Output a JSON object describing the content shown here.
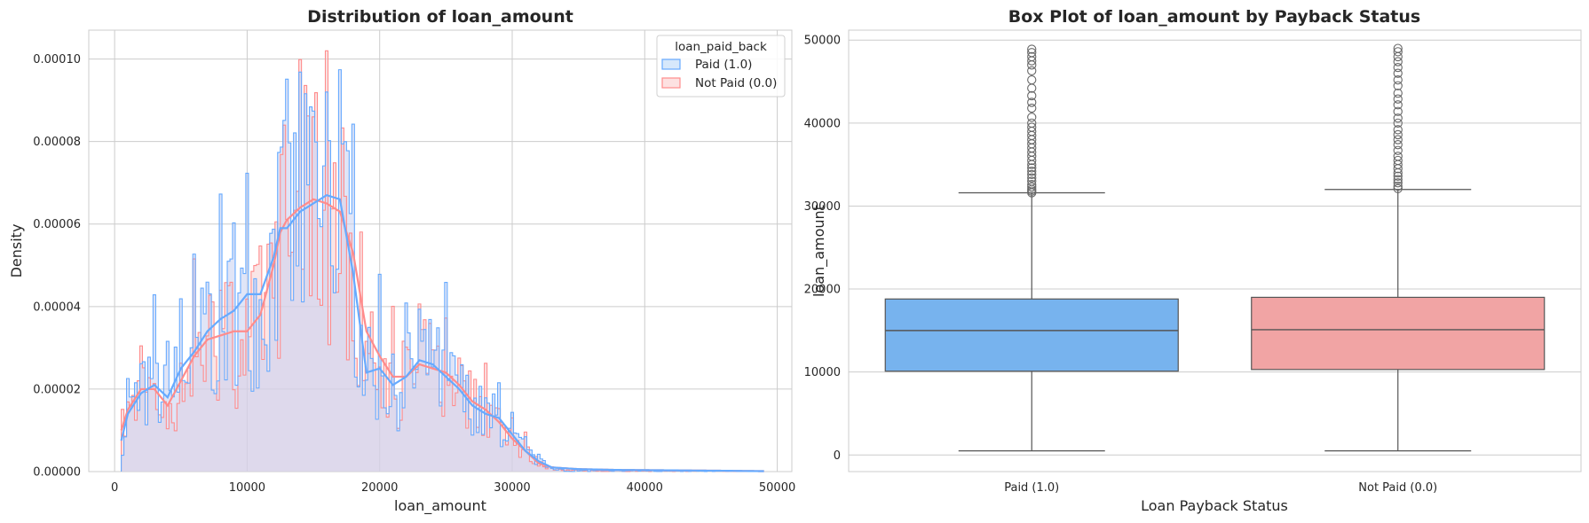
{
  "chart_data": [
    {
      "type": "histogram",
      "title": "Distribution of loan_amount",
      "xlabel": "loan_amount",
      "ylabel": "Density",
      "xlim": [
        -1950,
        51100
      ],
      "ylim": [
        0,
        0.000107
      ],
      "xticks": [
        0,
        10000,
        20000,
        30000,
        40000,
        50000
      ],
      "yticks": [
        0,
        2e-05,
        4e-05,
        6e-05,
        8e-05,
        0.0001
      ],
      "xtick_labels": [
        "0",
        "10000",
        "20000",
        "30000",
        "40000",
        "50000"
      ],
      "ytick_labels": [
        "0.00000",
        "0.00002",
        "0.00004",
        "0.00006",
        "0.00008",
        "0.00010"
      ],
      "legend": {
        "title": "loan_paid_back",
        "placement": "top-right",
        "entries": [
          {
            "label": "Paid (1.0)",
            "color": "#66aaff"
          },
          {
            "label": "Not Paid (0.0)",
            "color": "#ff8c8c"
          }
        ]
      },
      "series": [
        {
          "name": "Paid (1.0)",
          "color": "#66aaff",
          "kde_x": [
            500,
            1000,
            2000,
            3000,
            4000,
            5000,
            6000,
            7000,
            8000,
            9000,
            10000,
            11000,
            12000,
            12500,
            13000,
            14000,
            15000,
            16000,
            17000,
            18000,
            19000,
            20000,
            21000,
            22000,
            23000,
            24000,
            25000,
            26000,
            27000,
            28000,
            29000,
            30000,
            31000,
            32000,
            33000,
            35000,
            38000,
            42000,
            46000,
            49000
          ],
          "kde_density": [
            7.5e-06,
            1.4e-05,
            1.9e-05,
            2.1e-05,
            1.8e-05,
            2.5e-05,
            2.9e-05,
            3.4e-05,
            3.7e-05,
            3.9e-05,
            4.3e-05,
            4.3e-05,
            5.2e-05,
            5.9e-05,
            5.9e-05,
            6.3e-05,
            6.5e-05,
            6.7e-05,
            6.6e-05,
            4.8e-05,
            2.4e-05,
            2.5e-05,
            2.1e-05,
            2.3e-05,
            2.7e-05,
            2.6e-05,
            2.3e-05,
            2e-05,
            1.6e-05,
            1.4e-05,
            1.3e-05,
            9e-06,
            5e-06,
            2.5e-06,
            1e-06,
            6e-07,
            4e-07,
            3e-07,
            2e-07,
            1e-07
          ]
        },
        {
          "name": "Not Paid (0.0)",
          "color": "#ff8c8c",
          "kde_x": [
            500,
            1000,
            2000,
            3000,
            4000,
            5000,
            6000,
            7000,
            8000,
            9000,
            10000,
            11000,
            12000,
            12500,
            13000,
            14000,
            15000,
            16000,
            17000,
            18000,
            19000,
            20000,
            21000,
            22000,
            23000,
            24000,
            25000,
            26000,
            27000,
            28000,
            29000,
            30000,
            31000,
            32000,
            33000,
            35000,
            38000,
            42000,
            46000,
            49000
          ],
          "kde_density": [
            1e-05,
            1.5e-05,
            2e-05,
            2e-05,
            1.6e-05,
            2.2e-05,
            2.8e-05,
            3.2e-05,
            3.3e-05,
            3.4e-05,
            3.4e-05,
            3.8e-05,
            5e-05,
            5.8e-05,
            6.1e-05,
            6.4e-05,
            6.6e-05,
            6.5e-05,
            6.3e-05,
            5.3e-05,
            3.4e-05,
            2.8e-05,
            2.3e-05,
            2.3e-05,
            2.6e-05,
            2.5e-05,
            2.4e-05,
            2.1e-05,
            1.7e-05,
            1.5e-05,
            1.2e-05,
            8e-06,
            5e-06,
            2e-06,
            1e-06,
            6e-07,
            4e-07,
            3e-07,
            2e-07,
            1e-07
          ]
        }
      ]
    },
    {
      "type": "box",
      "title": "Box Plot of loan_amount by Payback Status",
      "xlabel": "Loan Payback Status",
      "ylabel": "loan_amount",
      "ylim": [
        -2000,
        51200
      ],
      "yticks": [
        0,
        10000,
        20000,
        30000,
        40000,
        50000
      ],
      "ytick_labels": [
        "0",
        "10000",
        "20000",
        "30000",
        "40000",
        "50000"
      ],
      "categories": [
        "Paid (1.0)",
        "Not Paid (0.0)"
      ],
      "boxes": [
        {
          "name": "Paid (1.0)",
          "color": "#77b3ee",
          "whisker_low": 500,
          "q1": 10100,
          "median": 15000,
          "q3": 18800,
          "whisker_high": 31600,
          "outliers": [
            31600,
            31800,
            32000,
            32300,
            32600,
            33000,
            33400,
            33800,
            34200,
            34600,
            35000,
            35500,
            36000,
            36500,
            37000,
            37500,
            38000,
            38500,
            39000,
            39500,
            40000,
            40700,
            41800,
            42500,
            43300,
            44200,
            45200,
            46300,
            47000,
            47500,
            48000,
            48500,
            48900
          ]
        },
        {
          "name": "Not Paid (0.0)",
          "color": "#f1a4a4",
          "whisker_low": 500,
          "q1": 10300,
          "median": 15100,
          "q3": 19000,
          "whisker_high": 32000,
          "outliers": [
            32100,
            32400,
            32800,
            33200,
            33600,
            34000,
            34500,
            35000,
            35500,
            36000,
            36700,
            37400,
            38000,
            38600,
            39200,
            40000,
            40600,
            41400,
            42200,
            42900,
            43600,
            44500,
            45200,
            46000,
            46700,
            47400,
            48000,
            48600,
            49000
          ]
        }
      ]
    }
  ]
}
